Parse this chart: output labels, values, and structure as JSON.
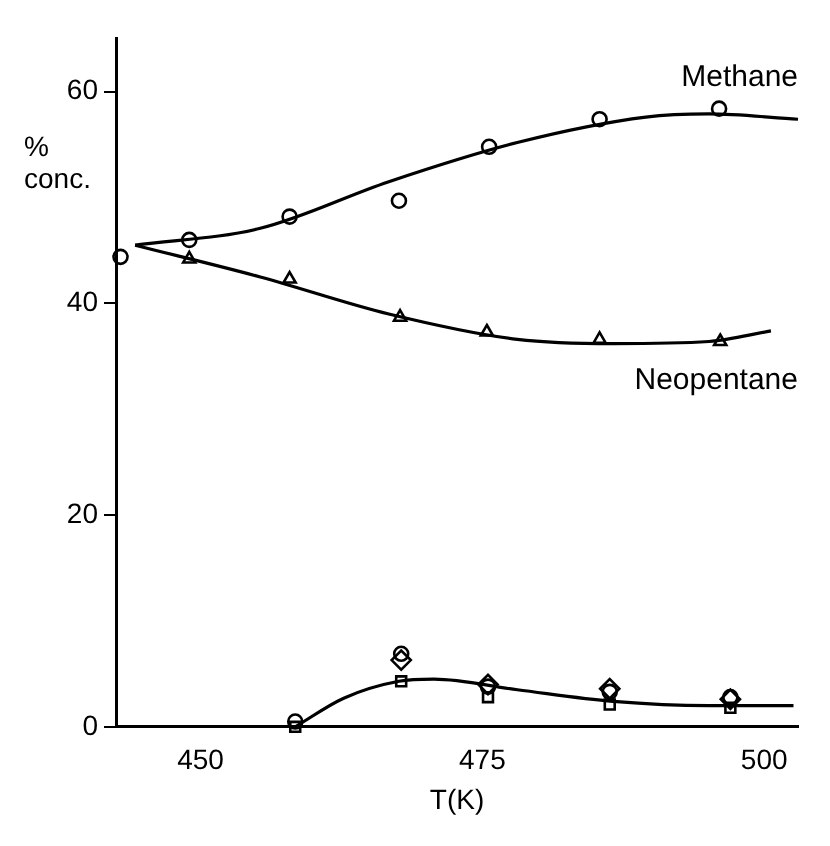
{
  "chart_data": {
    "type": "scatter",
    "xlabel": "T(K)",
    "ylabel": "% conc.",
    "xlim": [
      442.5,
      503
    ],
    "xticks": [
      450,
      475,
      500
    ],
    "ylim": [
      0,
      65
    ],
    "yticks": [
      0,
      20,
      40,
      60
    ],
    "grid": false,
    "legend": false,
    "series": [
      {
        "name": "Methane",
        "marker": "circle",
        "color": "#000000",
        "x": [
          442.9,
          449.0,
          457.9,
          467.6,
          475.6,
          485.4,
          496.0
        ],
        "values": [
          44.4,
          46.0,
          48.2,
          49.7,
          54.8,
          57.4,
          58.4
        ]
      },
      {
        "name": "Neopentane",
        "marker": "triangle",
        "color": "#000000",
        "x": [
          449.0,
          457.9,
          467.7,
          475.4,
          485.4,
          496.1
        ],
        "values": [
          44.2,
          42.3,
          38.7,
          37.3,
          36.6,
          36.4
        ]
      },
      {
        "type": "line",
        "marker": "none",
        "color": "#000000",
        "x": [
          444.2,
          455.3,
          466.7,
          478.1,
          489.5,
          495.1,
          503.0
        ],
        "values": [
          45.5,
          47.1,
          51.5,
          55.2,
          57.6,
          57.9,
          57.4
        ]
      },
      {
        "type": "line",
        "marker": "none",
        "color": "#000000",
        "x": [
          444.2,
          455.3,
          466.7,
          478.1,
          486.6,
          495.1,
          500.6
        ],
        "values": [
          45.5,
          42.5,
          39.0,
          36.6,
          36.2,
          36.4,
          37.4
        ]
      },
      {
        "marker": "circle",
        "color": "#000000",
        "x": [
          458.4,
          467.8,
          475.5,
          486.3,
          497.0
        ],
        "values": [
          0.5,
          6.9,
          3.8,
          3.3,
          2.8
        ]
      },
      {
        "marker": "diamond",
        "color": "#000000",
        "x": [
          467.8,
          475.5,
          486.3,
          497.0
        ],
        "values": [
          6.3,
          4.0,
          3.6,
          2.6
        ]
      },
      {
        "marker": "square",
        "color": "#000000",
        "x": [
          458.4,
          467.8,
          475.5,
          486.3,
          497.0
        ],
        "values": [
          0.0,
          4.3,
          2.8,
          2.1,
          1.8
        ]
      },
      {
        "type": "line",
        "marker": "none",
        "color": "#000000",
        "x": [
          458.4,
          462.7,
          467.6,
          470.7,
          478.1,
          486.6,
          495.1,
          502.6
        ],
        "values": [
          0.0,
          2.7,
          4.3,
          4.5,
          3.5,
          2.4,
          2.0,
          2.0
        ]
      }
    ]
  }
}
